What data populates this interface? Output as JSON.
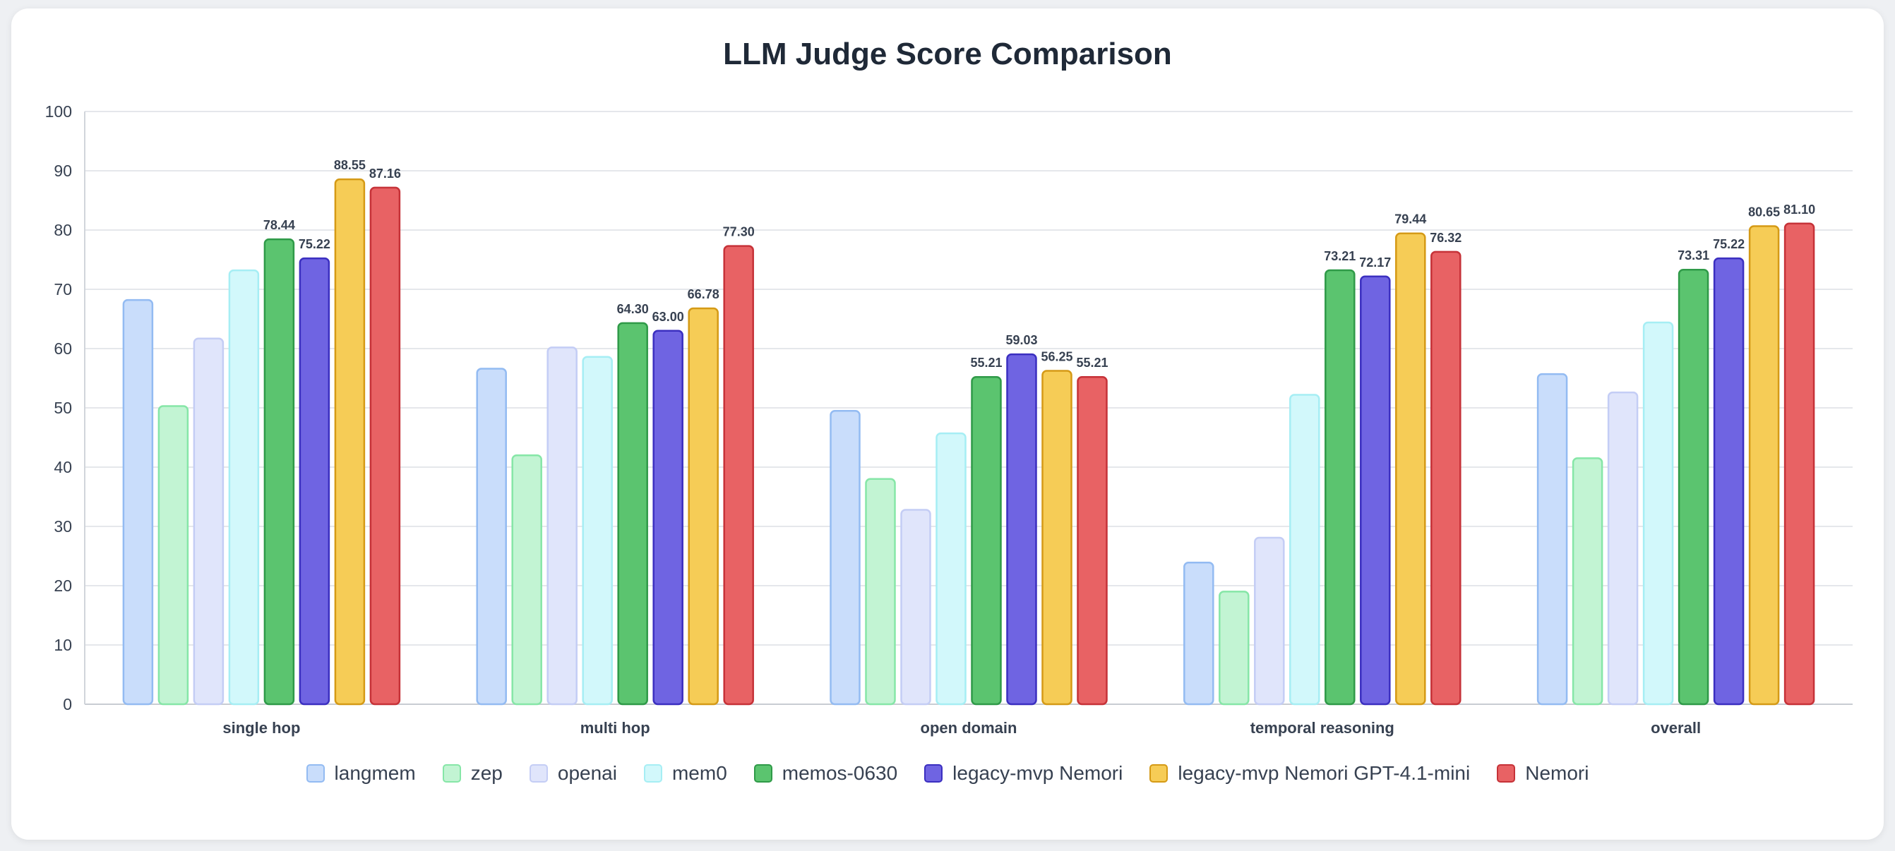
{
  "chart_data": {
    "type": "bar",
    "title": "LLM Judge Score Comparison",
    "categories": [
      "single hop",
      "multi hop",
      "open domain",
      "temporal reasoning",
      "overall"
    ],
    "ylim": [
      0,
      100
    ],
    "yticks": [
      0,
      10,
      20,
      30,
      40,
      50,
      60,
      70,
      80,
      90,
      100
    ],
    "grid": true,
    "legend_position": "bottom",
    "series": [
      {
        "name": "langmem",
        "values": [
          68.2,
          56.6,
          49.5,
          23.9,
          55.7
        ],
        "fill": "#c9ddfb",
        "stroke": "#93bbf2",
        "labeled": false
      },
      {
        "name": "zep",
        "values": [
          50.3,
          42.0,
          38.0,
          19.0,
          41.5
        ],
        "fill": "#c2f4d3",
        "stroke": "#86e6a7",
        "labeled": false
      },
      {
        "name": "openai",
        "values": [
          61.7,
          60.2,
          32.8,
          28.1,
          52.6
        ],
        "fill": "#e0e5fb",
        "stroke": "#c4cdf5",
        "labeled": false
      },
      {
        "name": "mem0",
        "values": [
          73.2,
          58.6,
          45.7,
          52.2,
          64.4
        ],
        "fill": "#d2f8fb",
        "stroke": "#a6eef4",
        "labeled": false
      },
      {
        "name": "memos-0630",
        "values": [
          78.44,
          64.3,
          55.21,
          73.21,
          73.31
        ],
        "fill": "#5bc46f",
        "stroke": "#2f9a48",
        "labeled": true
      },
      {
        "name": "legacy-mvp Nemori",
        "values": [
          75.22,
          63.0,
          59.03,
          72.17,
          75.22
        ],
        "fill": "#6f64e2",
        "stroke": "#3b2fc0",
        "labeled": true
      },
      {
        "name": "legacy-mvp Nemori GPT-4.1-mini",
        "values": [
          88.55,
          66.78,
          56.25,
          79.44,
          80.65
        ],
        "fill": "#f6cc56",
        "stroke": "#d59a16",
        "labeled": true
      },
      {
        "name": "Nemori",
        "values": [
          87.16,
          77.3,
          55.21,
          76.32,
          81.1
        ],
        "fill": "#e86264",
        "stroke": "#c63238",
        "labeled": true
      }
    ]
  }
}
